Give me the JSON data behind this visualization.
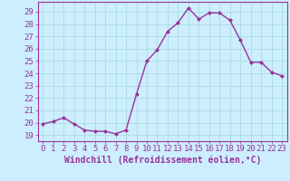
{
  "x": [
    0,
    1,
    2,
    3,
    4,
    5,
    6,
    7,
    8,
    9,
    10,
    11,
    12,
    13,
    14,
    15,
    16,
    17,
    18,
    19,
    20,
    21,
    22,
    23
  ],
  "y": [
    19.9,
    20.1,
    20.4,
    19.9,
    19.4,
    19.3,
    19.3,
    19.1,
    19.4,
    22.3,
    25.0,
    25.9,
    27.4,
    28.1,
    29.3,
    28.4,
    28.9,
    28.9,
    28.3,
    26.7,
    24.9,
    24.9,
    24.1,
    23.8
  ],
  "line_color": "#993399",
  "marker": "D",
  "marker_size": 2,
  "linewidth": 1.0,
  "xlabel": "Windchill (Refroidissement éolien,°C)",
  "xlabel_fontsize": 7,
  "xtick_labels": [
    "0",
    "1",
    "2",
    "3",
    "4",
    "5",
    "6",
    "7",
    "8",
    "9",
    "10",
    "11",
    "12",
    "13",
    "14",
    "15",
    "16",
    "17",
    "18",
    "19",
    "20",
    "21",
    "22",
    "23"
  ],
  "ytick_vals": [
    19,
    20,
    21,
    22,
    23,
    24,
    25,
    26,
    27,
    28,
    29
  ],
  "ytick_labels": [
    "19",
    "20",
    "21",
    "22",
    "23",
    "24",
    "25",
    "26",
    "27",
    "28",
    "29"
  ],
  "ylim": [
    18.5,
    29.8
  ],
  "xlim": [
    -0.5,
    23.5
  ],
  "grid_color": "#aadddd",
  "bg_color": "#cceeff",
  "tick_color": "#993399",
  "label_color": "#993399",
  "tick_fontsize": 6.5,
  "spine_color": "#993399"
}
